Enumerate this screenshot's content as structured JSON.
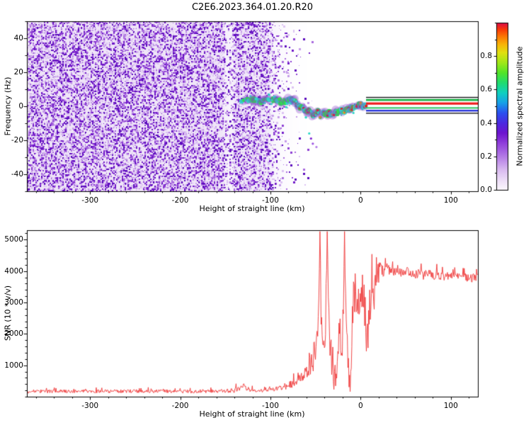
{
  "title": "C2E6.2023.364.01.20.R20",
  "chart_data": [
    {
      "type": "heatmap",
      "title": "C2E6.2023.364.01.20.R20",
      "xlabel": "Height of straight line (km)",
      "ylabel": "Frequency (Hz)",
      "xlim": [
        -370,
        130
      ],
      "ylim": [
        -50,
        50
      ],
      "xticks": [
        -300,
        -200,
        -100,
        0,
        100
      ],
      "xtick_labels": [
        "-300",
        "-200",
        "-100",
        "0",
        "100"
      ],
      "x_minor_step": 20,
      "yticks": [
        -40,
        -20,
        0,
        20,
        40
      ],
      "ytick_labels": [
        "-40",
        "-20",
        "0",
        "20",
        "40"
      ],
      "y_minor_step": 10,
      "grid": false,
      "colorbar": {
        "label": "Normalized spectral amplitude",
        "range": [
          0,
          1
        ],
        "tick_values": [
          0,
          0.2,
          0.4,
          0.6,
          0.8
        ],
        "tick_labels": [
          "0.0",
          "0.2",
          "0.4",
          "0.6",
          "0.8"
        ],
        "minor_step": 0.1,
        "stops": [
          [
            0.0,
            "#fbf7fd"
          ],
          [
            0.05,
            "#efe1f8"
          ],
          [
            0.12,
            "#d9baf0"
          ],
          [
            0.2,
            "#b37ae6"
          ],
          [
            0.28,
            "#8f3ddb"
          ],
          [
            0.34,
            "#6d14cf"
          ],
          [
            0.4,
            "#4b2ae0"
          ],
          [
            0.46,
            "#2b50f0"
          ],
          [
            0.52,
            "#18a0e8"
          ],
          [
            0.58,
            "#10d0c0"
          ],
          [
            0.64,
            "#20dc70"
          ],
          [
            0.7,
            "#52e428"
          ],
          [
            0.76,
            "#a0e818"
          ],
          [
            0.82,
            "#e0e010"
          ],
          [
            0.87,
            "#f8b408"
          ],
          [
            0.92,
            "#fc7404"
          ],
          [
            0.96,
            "#f83808"
          ],
          [
            1.0,
            "#d8084c"
          ]
        ]
      },
      "noise": {
        "tint": "#ebe0f7",
        "palette": [
          "#dcc2f2",
          "#c49ae9",
          "#a86ade",
          "#8b3bd3",
          "#6f16c8",
          "#5a0abc"
        ],
        "density": [
          [
            -370,
            0.55
          ],
          [
            -155,
            0.55
          ],
          [
            -150,
            0.3
          ],
          [
            -143,
            0.26
          ],
          [
            -139,
            0.5
          ],
          [
            -110,
            0.5
          ],
          [
            -103,
            0.42
          ],
          [
            -97,
            0.22
          ],
          [
            -88,
            0.12
          ],
          [
            -76,
            0.05
          ],
          [
            -62,
            0.02
          ],
          [
            -52,
            0.008
          ],
          [
            -45,
            0.0
          ],
          [
            130,
            0.0
          ]
        ]
      },
      "signal_trace": {
        "colors": {
          "halo": "rgba(130,60,200,0.32)",
          "cyan": "#2fd8c8",
          "green": "#2ee04e",
          "red": "#f21616",
          "orange": "#ff9000"
        },
        "intensity": [
          [
            -132,
            0.6
          ],
          [
            -100,
            0.6
          ],
          [
            -75,
            0.7
          ],
          [
            -55,
            0.85
          ],
          [
            -25,
            0.95
          ],
          [
            6,
            1.0
          ]
        ],
        "path": [
          [
            -132,
            3
          ],
          [
            -120,
            3.5
          ],
          [
            -110,
            3
          ],
          [
            -100,
            3.5
          ],
          [
            -95,
            4
          ],
          [
            -85,
            2
          ],
          [
            -75,
            4
          ],
          [
            -70,
            1
          ],
          [
            -65,
            -1
          ],
          [
            -60,
            -3
          ],
          [
            -55,
            -2
          ],
          [
            -52,
            -5
          ],
          [
            -48,
            -3
          ],
          [
            -45,
            -6
          ],
          [
            -42,
            -4
          ],
          [
            -38,
            -6
          ],
          [
            -35,
            -4
          ],
          [
            -32,
            -5
          ],
          [
            -28,
            -3
          ],
          [
            -25,
            -4
          ],
          [
            -22,
            -2
          ],
          [
            -18,
            -3
          ],
          [
            -15,
            -1
          ],
          [
            -12,
            -2
          ],
          [
            -8,
            -1
          ],
          [
            -5,
            0
          ],
          [
            -2,
            0.5
          ],
          [
            2,
            0.6
          ],
          [
            6,
            0.6
          ]
        ]
      },
      "carrier_band": {
        "x_range": [
          6,
          130
        ],
        "center_hz": 0.6,
        "stripes": [
          {
            "offset": 4.6,
            "px": 1.4,
            "color": "#15151a"
          },
          {
            "offset": 3.1,
            "px": 2.6,
            "color": "#0faf3c"
          },
          {
            "offset": 1.0,
            "px": 3.2,
            "color": "#ef1c1c"
          },
          {
            "offset": -1.6,
            "px": 2.0,
            "color": "#27c45e"
          },
          {
            "offset": -3.2,
            "px": 2.4,
            "color": "#2431d8"
          },
          {
            "offset": -4.7,
            "px": 1.4,
            "color": "#15151a"
          }
        ]
      },
      "isolated_dots": [
        {
          "x": -55,
          "hz": -19,
          "color": "#7a1fd0"
        },
        {
          "x": -53,
          "hz": -22,
          "color": "#9a4fe0"
        },
        {
          "x": -57,
          "hz": -16,
          "color": "#2fd8c8"
        },
        {
          "x": -49,
          "hz": -24,
          "color": "#b27ae8"
        }
      ]
    },
    {
      "type": "line",
      "xlabel": "Height of straight line (km)",
      "ylabel": "SNR (10 * v/v)",
      "xlim": [
        -370,
        130
      ],
      "ylim": [
        0,
        5300
      ],
      "xticks": [
        -300,
        -200,
        -100,
        0,
        100
      ],
      "xtick_labels": [
        "-300",
        "-200",
        "-100",
        "0",
        "100"
      ],
      "x_minor_step": 20,
      "yticks": [
        1000,
        2000,
        3000,
        4000,
        5000
      ],
      "ytick_labels": [
        "1000",
        "2000",
        "3000",
        "4000",
        "5000"
      ],
      "y_minor_step": 200,
      "grid": false,
      "series_color": "#ee3333",
      "envelope": [
        [
          -370,
          170
        ],
        [
          -300,
          170
        ],
        [
          -250,
          175
        ],
        [
          -200,
          170
        ],
        [
          -160,
          175
        ],
        [
          -140,
          200
        ],
        [
          -133,
          300
        ],
        [
          -129,
          360
        ],
        [
          -126,
          250
        ],
        [
          -120,
          205
        ],
        [
          -112,
          190
        ],
        [
          -104,
          200
        ],
        [
          -97,
          230
        ],
        [
          -90,
          270
        ],
        [
          -84,
          330
        ],
        [
          -78,
          390
        ],
        [
          -72,
          460
        ],
        [
          -66,
          560
        ],
        [
          -61,
          700
        ],
        [
          -57,
          880
        ],
        [
          -53,
          1150
        ],
        [
          -50,
          1600
        ],
        [
          -48,
          2100
        ],
        [
          -46,
          3300
        ],
        [
          -45,
          5250
        ],
        [
          -44,
          2600
        ],
        [
          -42,
          1700
        ],
        [
          -40,
          1400
        ],
        [
          -38,
          2600
        ],
        [
          -37,
          5250
        ],
        [
          -36,
          3200
        ],
        [
          -34,
          1500
        ],
        [
          -31,
          800
        ],
        [
          -29,
          420
        ],
        [
          -27,
          900
        ],
        [
          -25,
          1700
        ],
        [
          -23,
          2600
        ],
        [
          -21,
          1500
        ],
        [
          -19,
          3000
        ],
        [
          -18,
          4900
        ],
        [
          -16,
          2800
        ],
        [
          -14,
          1100
        ],
        [
          -12,
          500
        ],
        [
          -10,
          1600
        ],
        [
          -8,
          2900
        ],
        [
          -6,
          3600
        ],
        [
          -4,
          2500
        ],
        [
          -2,
          2950
        ],
        [
          0,
          3300
        ],
        [
          2,
          2500
        ],
        [
          4,
          3050
        ],
        [
          6,
          2100
        ],
        [
          8,
          1500
        ],
        [
          10,
          2800
        ],
        [
          12,
          3300
        ],
        [
          14,
          2900
        ],
        [
          16,
          3500
        ],
        [
          18,
          3800
        ],
        [
          20,
          3950
        ],
        [
          23,
          4050
        ],
        [
          26,
          3950
        ],
        [
          30,
          4100
        ],
        [
          35,
          3980
        ],
        [
          40,
          4050
        ],
        [
          45,
          3950
        ],
        [
          50,
          4020
        ],
        [
          55,
          3960
        ],
        [
          60,
          3900
        ],
        [
          65,
          3950
        ],
        [
          70,
          3870
        ],
        [
          75,
          3920
        ],
        [
          80,
          3860
        ],
        [
          85,
          3900
        ],
        [
          90,
          3820
        ],
        [
          95,
          3870
        ],
        [
          100,
          3830
        ],
        [
          105,
          3860
        ],
        [
          110,
          3790
        ],
        [
          115,
          3830
        ],
        [
          120,
          3760
        ],
        [
          125,
          3800
        ],
        [
          130,
          3780
        ]
      ],
      "noise_amp": [
        [
          -370,
          55
        ],
        [
          -150,
          55
        ],
        [
          -135,
          90
        ],
        [
          -125,
          70
        ],
        [
          -110,
          55
        ],
        [
          -100,
          65
        ],
        [
          -90,
          90
        ],
        [
          -80,
          120
        ],
        [
          -70,
          160
        ],
        [
          -60,
          260
        ],
        [
          -52,
          420
        ],
        [
          -46,
          700
        ],
        [
          -42,
          600
        ],
        [
          -38,
          800
        ],
        [
          -34,
          700
        ],
        [
          -30,
          450
        ],
        [
          -26,
          600
        ],
        [
          -22,
          800
        ],
        [
          -18,
          900
        ],
        [
          -14,
          700
        ],
        [
          -10,
          800
        ],
        [
          -6,
          700
        ],
        [
          -2,
          600
        ],
        [
          2,
          700
        ],
        [
          6,
          800
        ],
        [
          10,
          700
        ],
        [
          14,
          600
        ],
        [
          18,
          400
        ],
        [
          22,
          260
        ],
        [
          26,
          200
        ],
        [
          30,
          180
        ],
        [
          40,
          160
        ],
        [
          60,
          150
        ],
        [
          80,
          150
        ],
        [
          100,
          140
        ],
        [
          130,
          140
        ]
      ]
    }
  ]
}
